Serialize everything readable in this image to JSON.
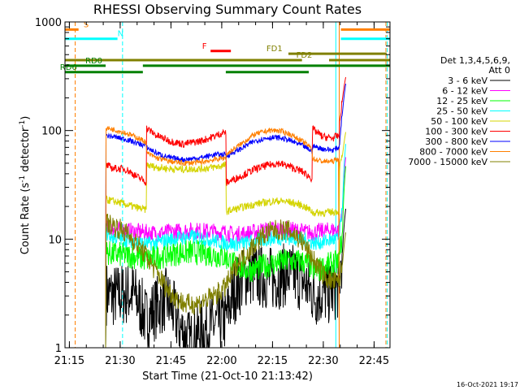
{
  "chart_data": {
    "type": "line",
    "title": "RHESSI Observing Summary Count Rates",
    "xlabel": "Start Time (21-Oct-10 21:13:42)",
    "ylabel": "Count Rate (s",
    "ylabel_sup": "-1",
    "ylabel_end": " detector",
    "ylabel_sup2": "-1",
    "ylabel_close": ")",
    "x_unit": "minutes",
    "xlim": [
      0,
      96
    ],
    "ylim": [
      1,
      1000
    ],
    "y_scale": "log",
    "x_ticks": [
      {
        "v": 1.3,
        "label": "21:15"
      },
      {
        "v": 16.3,
        "label": "21:30"
      },
      {
        "v": 31.3,
        "label": "21:45"
      },
      {
        "v": 46.3,
        "label": "22:00"
      },
      {
        "v": 61.3,
        "label": "22:15"
      },
      {
        "v": 76.3,
        "label": "22:30"
      },
      {
        "v": 91.3,
        "label": "22:45"
      }
    ],
    "y_ticks": [
      {
        "v": 1,
        "label": "1"
      },
      {
        "v": 10,
        "label": "10"
      },
      {
        "v": 100,
        "label": "100"
      },
      {
        "v": 1000,
        "label": "1000"
      }
    ],
    "legend": {
      "title1": "Det 1,3,4,5,6,9,",
      "title2": "Att 0",
      "placement": "right"
    },
    "data_start": 12.0,
    "data_end": 83.0,
    "series": [
      {
        "name": "3 - 6 keV",
        "color": "#000000",
        "x": [
          12,
          12.1,
          14,
          20,
          24,
          26,
          30,
          34,
          37,
          40,
          44,
          47.5,
          50,
          54,
          58,
          62,
          66,
          70,
          72,
          74,
          76,
          78,
          80,
          81,
          82,
          83
        ],
        "y": [
          1,
          3.2,
          3.0,
          3.2,
          1.8,
          2.2,
          2.8,
          1.5,
          1.1,
          1.4,
          1.6,
          1.8,
          3.2,
          4.8,
          4.5,
          4.3,
          4.8,
          4.2,
          3.5,
          3.0,
          3.2,
          3.2,
          3.5,
          3.6,
          8.0,
          20.0
        ]
      },
      {
        "name": "6 - 12 keV",
        "color": "#ff00ff",
        "x": [
          12,
          12.1,
          14,
          20,
          24,
          27,
          30,
          34,
          38,
          42,
          47.5,
          50,
          54,
          58,
          62,
          66,
          70,
          72,
          74,
          76,
          78,
          80,
          81,
          82,
          83
        ],
        "y": [
          1,
          12.5,
          12.3,
          11.8,
          11.5,
          11.3,
          11.5,
          11.8,
          12.0,
          11.8,
          11.5,
          11.0,
          11.3,
          12.0,
          12.3,
          12.2,
          11.8,
          11.5,
          11.6,
          11.8,
          12.0,
          12.2,
          12.0,
          20.0,
          60.0
        ]
      },
      {
        "name": "12 - 25 keV",
        "color": "#00ff00",
        "x": [
          12,
          12.1,
          14,
          20,
          24,
          27,
          30,
          34,
          38,
          42,
          47.5,
          50,
          54,
          58,
          62,
          66,
          70,
          72,
          74,
          76,
          78,
          80,
          81,
          82,
          83
        ],
        "y": [
          1,
          7.5,
          7.3,
          7.0,
          6.5,
          6.8,
          7.2,
          7.5,
          7.6,
          7.4,
          6.8,
          5.8,
          5.2,
          5.5,
          6.0,
          6.3,
          6.2,
          5.8,
          5.0,
          5.4,
          5.8,
          6.0,
          6.0,
          12.0,
          50.0
        ]
      },
      {
        "name": "25 - 50 keV",
        "color": "#00ffff",
        "x": [
          12,
          12.1,
          14,
          20,
          24,
          27,
          30,
          34,
          38,
          42,
          47.5,
          50,
          54,
          58,
          62,
          66,
          70,
          72,
          74,
          76,
          78,
          80,
          81,
          82,
          83
        ],
        "y": [
          1,
          11.2,
          10.5,
          9.6,
          9.0,
          9.3,
          9.8,
          10.3,
          10.5,
          10.0,
          9.2,
          9.0,
          9.3,
          9.8,
          10.2,
          10.3,
          10.0,
          9.5,
          9.2,
          9.4,
          9.8,
          10.0,
          10.0,
          20.0,
          80.0
        ]
      },
      {
        "name": "50 - 100 keV",
        "color": "#d4d400",
        "x": [
          12,
          12.1,
          14,
          20,
          24,
          24.1,
          27,
          31,
          35,
          40,
          44,
          47.5,
          47.6,
          52,
          56,
          60,
          63,
          66,
          70,
          73,
          73.1,
          76,
          79,
          81,
          81.1,
          82,
          83
        ],
        "y": [
          1,
          23.0,
          22.5,
          20.0,
          18.5,
          48.0,
          46.0,
          44.5,
          44.0,
          44.5,
          46.0,
          48.0,
          18.0,
          19.5,
          21.0,
          22.0,
          22.5,
          22.0,
          20.5,
          18.0,
          17.5,
          17.5,
          17.8,
          18.0,
          45.0,
          60.0,
          100.0
        ]
      },
      {
        "name": "100 - 300 keV",
        "color": "#ff0000",
        "x": [
          12,
          12.1,
          14,
          18,
          21,
          24,
          24.1,
          27,
          31,
          35,
          40,
          44,
          47.5,
          47.6,
          52,
          56,
          60,
          63,
          66,
          70,
          73,
          73.1,
          76,
          79,
          81,
          81.1,
          82,
          83
        ],
        "y": [
          1,
          48.0,
          45.0,
          44.0,
          38.0,
          33.5,
          105.0,
          90.0,
          80.0,
          75.0,
          80.0,
          88.0,
          98.0,
          33.0,
          38.0,
          44.0,
          48.0,
          50.0,
          47.0,
          42.0,
          36.0,
          103.0,
          88.0,
          85.0,
          90.0,
          110.0,
          200.0,
          320.0
        ]
      },
      {
        "name": "300 - 800 keV",
        "color": "#0000ff",
        "x": [
          12,
          12.1,
          14,
          18,
          21,
          24,
          24.1,
          27,
          31,
          35,
          40,
          44,
          47.5,
          47.6,
          52,
          56,
          60,
          63,
          66,
          70,
          73,
          73.1,
          76,
          79,
          81,
          81.1,
          82,
          83
        ],
        "y": [
          1,
          90.0,
          88.0,
          83.0,
          77.0,
          72.0,
          70.0,
          62.0,
          56.0,
          54.0,
          56.0,
          60.0,
          60.0,
          58.0,
          68.0,
          80.0,
          86.0,
          86.0,
          82.0,
          73.0,
          64.0,
          72.0,
          68.0,
          66.0,
          70.0,
          75.0,
          150.0,
          280.0
        ]
      },
      {
        "name": "800 - 7000 keV",
        "color": "#ff8000",
        "x": [
          12,
          12.1,
          14,
          18,
          21,
          24,
          24.1,
          27,
          31,
          35,
          40,
          44,
          47.5,
          47.6,
          52,
          56,
          60,
          63,
          66,
          70,
          73,
          73.1,
          76,
          79,
          80.8,
          80.9,
          81.5,
          82,
          83
        ],
        "y": [
          1,
          105.0,
          103.0,
          95.0,
          87.0,
          78.0,
          62.0,
          56.0,
          52.0,
          50.0,
          51.0,
          54.0,
          56.0,
          60.0,
          75.0,
          92.0,
          100.0,
          100.0,
          94.0,
          80.0,
          68.0,
          55.0,
          52.0,
          52.0,
          55.0,
          1,
          1,
          1,
          1
        ]
      },
      {
        "name": "7000 - 15000 keV",
        "color": "#808000",
        "x": [
          12,
          12.1,
          14,
          17,
          20,
          22,
          24,
          26,
          28,
          30,
          33,
          36,
          40,
          44,
          47,
          49,
          51,
          54,
          56,
          58,
          60,
          62,
          64,
          66,
          68,
          70,
          72,
          74,
          76,
          78,
          80,
          81,
          82,
          83
        ],
        "y": [
          1,
          14.0,
          13.5,
          12.0,
          10.0,
          8.5,
          7.0,
          5.5,
          4.5,
          3.5,
          2.8,
          2.5,
          2.6,
          3.0,
          3.5,
          4.5,
          6.0,
          7.5,
          9.0,
          10.5,
          11.5,
          12.0,
          12.2,
          12.0,
          11.0,
          9.5,
          7.5,
          6.0,
          4.8,
          4.2,
          4.0,
          4.0,
          6.0,
          12.0
        ]
      }
    ],
    "vlines": [
      {
        "x": 3.0,
        "color": "#ff8000",
        "style": "dashed"
      },
      {
        "x": 17.0,
        "color": "#00ffff",
        "style": "dashed"
      },
      {
        "x": 80.0,
        "color": "#00ffff",
        "style": "solid"
      },
      {
        "x": 81.0,
        "color": "#ff8000",
        "style": "solid"
      },
      {
        "x": 94.8,
        "color": "#ff8000",
        "style": "dashed"
      },
      {
        "x": 95.2,
        "color": "#00ffff",
        "style": "dashed"
      }
    ],
    "status_bars": [
      {
        "label": "S",
        "color": "#ff8000",
        "y": 850,
        "segments": [
          [
            0,
            4
          ],
          [
            81.5,
            96
          ]
        ],
        "label_x": 5.5
      },
      {
        "label": "N",
        "color": "#00ffff",
        "y": 700,
        "segments": [
          [
            0,
            15.5
          ],
          [
            81.5,
            96
          ]
        ],
        "label_x": 15.5
      },
      {
        "label": "F",
        "color": "#ff0000",
        "y": 540,
        "segments": [
          [
            43,
            49
          ]
        ],
        "label_x": 40.5
      },
      {
        "label": "FD1",
        "color": "#808000",
        "y": 510,
        "segments": [
          [
            66,
            95
          ]
        ],
        "label_x": 59.5
      },
      {
        "label": "FD2",
        "color": "#808000",
        "y": 445,
        "segments": [
          [
            0,
            70
          ],
          [
            78,
            96
          ]
        ],
        "label_x": 68.3
      },
      {
        "label": "RD0",
        "color": "#008000",
        "y": 395,
        "segments": [
          [
            0,
            12
          ],
          [
            23,
            96
          ]
        ],
        "label_x": 6.0
      },
      {
        "label": "RD6",
        "color": "#008000",
        "y": 345,
        "segments": [
          [
            0,
            23
          ],
          [
            47.5,
            72
          ]
        ],
        "label_x": -1.5
      }
    ],
    "grid": false
  },
  "footer": {
    "timestamp": "16-Oct-2021 19:17"
  }
}
